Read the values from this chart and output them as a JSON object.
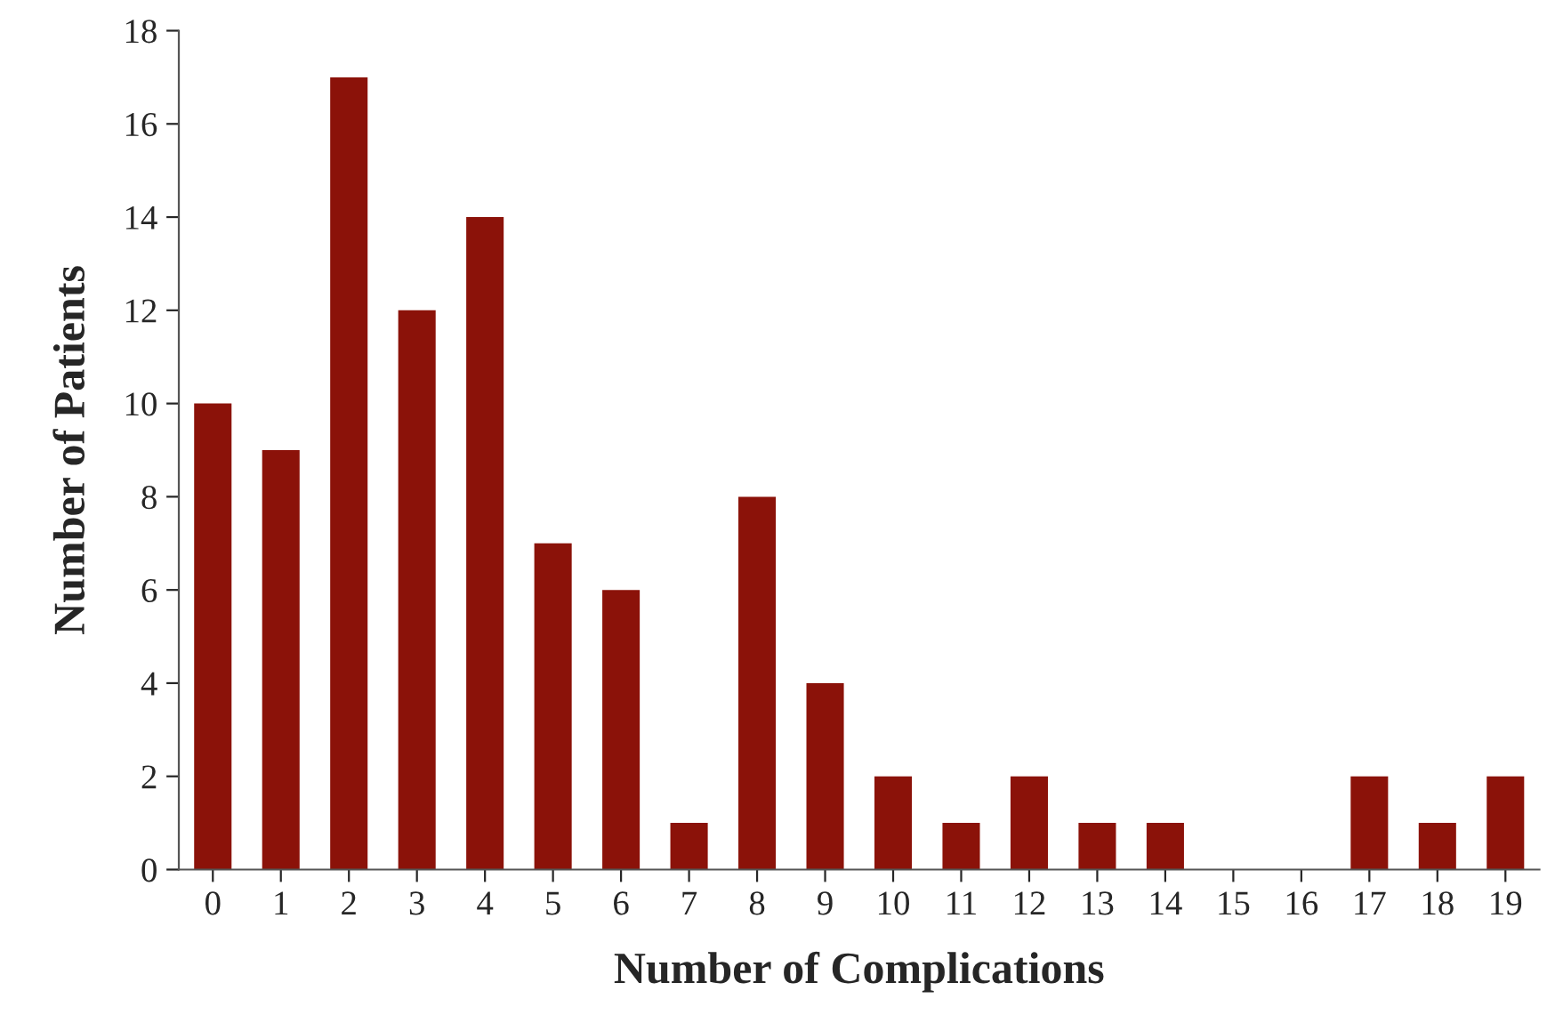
{
  "chart_data": {
    "type": "bar",
    "xlabel": "Number of Complications",
    "ylabel": "Number of Patients",
    "categories": [
      "0",
      "1",
      "2",
      "3",
      "4",
      "5",
      "6",
      "7",
      "8",
      "9",
      "10",
      "11",
      "12",
      "13",
      "14",
      "15",
      "16",
      "17",
      "18",
      "19"
    ],
    "values": [
      10,
      9,
      17,
      12,
      14,
      7,
      6,
      1,
      8,
      4,
      2,
      1,
      2,
      1,
      1,
      0,
      0,
      2,
      1,
      2
    ],
    "color": "#8b1209",
    "ylim": [
      0,
      18
    ],
    "yticks": [
      0,
      2,
      4,
      6,
      8,
      10,
      12,
      14,
      16,
      18
    ],
    "grid": false,
    "legend": false
  }
}
